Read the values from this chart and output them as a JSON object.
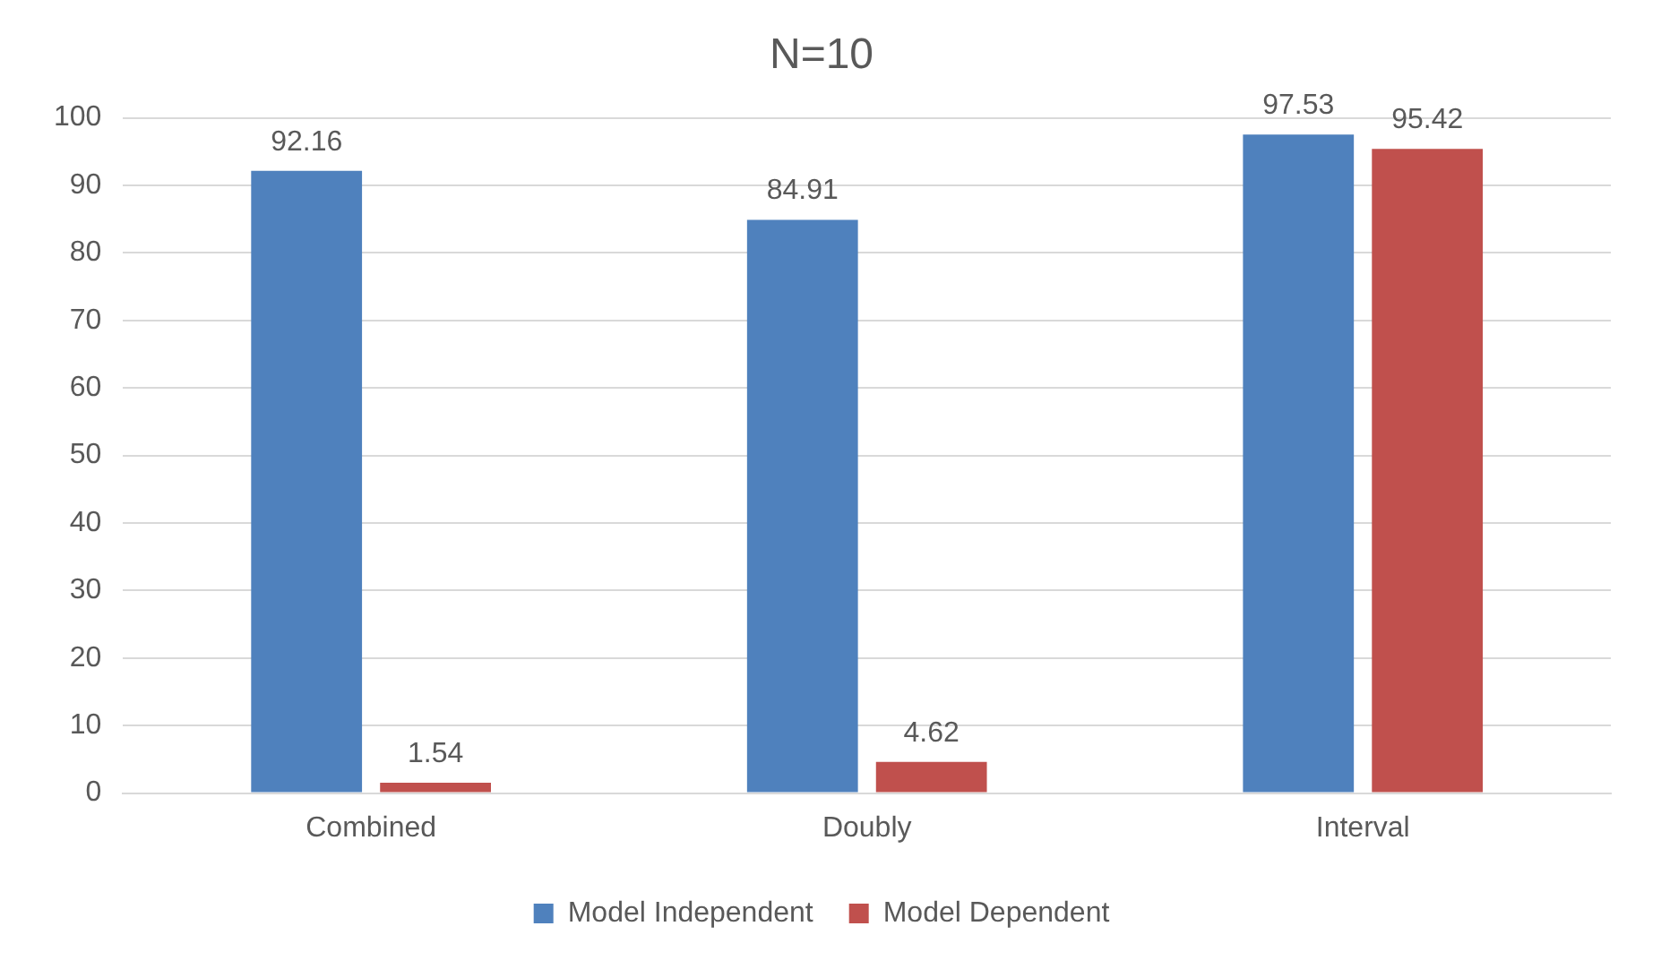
{
  "chart_data": {
    "type": "bar",
    "title": "N=10",
    "categories": [
      "Combined",
      "Doubly",
      "Interval"
    ],
    "series": [
      {
        "name": "Model Independent",
        "color": "#4f81bd",
        "values": [
          92.16,
          84.91,
          97.53
        ]
      },
      {
        "name": "Model Dependent",
        "color": "#c0504d",
        "values": [
          1.54,
          4.62,
          95.42
        ]
      }
    ],
    "ylim": [
      0,
      100
    ],
    "yticks": [
      0,
      10,
      20,
      30,
      40,
      50,
      60,
      70,
      80,
      90,
      100
    ],
    "grid": "y",
    "legend": "bottom",
    "data_labels": true
  }
}
